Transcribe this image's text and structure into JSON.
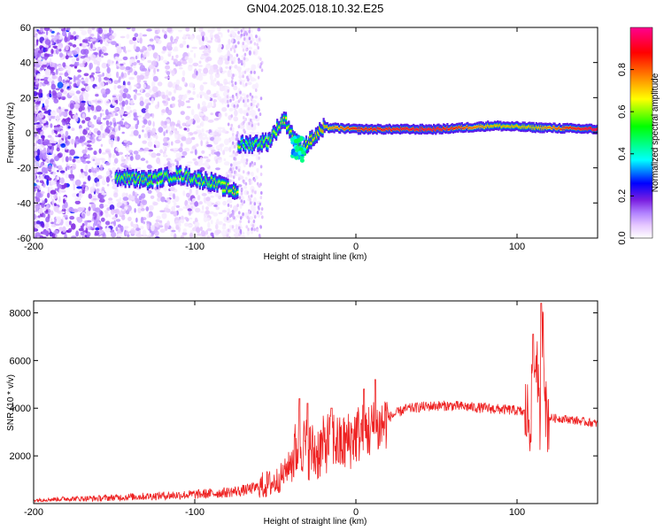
{
  "title": "GN04.2025.018.10.32.E25",
  "chart_data": [
    {
      "type": "heatmap",
      "xlabel": "Height of straight line (km)",
      "ylabel": "Frequency (Hz)",
      "xlim": [
        -200,
        150
      ],
      "ylim": [
        -60,
        60
      ],
      "xticks": [
        -200,
        -100,
        0,
        100
      ],
      "yticks": [
        -60,
        -40,
        -20,
        0,
        20,
        40,
        60
      ],
      "colorbar": {
        "label": "Normalized spectral amplitude",
        "range": [
          0,
          1
        ],
        "ticks": [
          "0.0",
          "0.2",
          "0.4",
          "0.6",
          "0.8"
        ],
        "colors": [
          "#ffffff",
          "#e6c8ff",
          "#b080ff",
          "#7a1fe0",
          "#0000ff",
          "#00ffff",
          "#00ff00",
          "#ffff00",
          "#ff8000",
          "#ff0000",
          "#ff0090"
        ]
      },
      "ridge": [
        {
          "x": -150,
          "freq": -25,
          "amp": 0.45
        },
        {
          "x": -130,
          "freq": -27,
          "amp": 0.45
        },
        {
          "x": -110,
          "freq": -24,
          "amp": 0.45
        },
        {
          "x": -90,
          "freq": -28,
          "amp": 0.45
        },
        {
          "x": -77,
          "freq": -33,
          "amp": 0.5
        },
        {
          "x": -72,
          "freq": -7,
          "amp": 0.4
        },
        {
          "x": -55,
          "freq": -5,
          "amp": 0.45
        },
        {
          "x": -45,
          "freq": 8,
          "amp": 0.5
        },
        {
          "x": -35,
          "freq": -10,
          "amp": 0.5
        },
        {
          "x": -20,
          "freq": 3,
          "amp": 0.6
        },
        {
          "x": 0,
          "freq": 2,
          "amp": 0.75
        },
        {
          "x": 50,
          "freq": 2,
          "amp": 0.8
        },
        {
          "x": 85,
          "freq": 4,
          "amp": 0.6
        },
        {
          "x": 110,
          "freq": 3,
          "amp": 0.6
        },
        {
          "x": 150,
          "freq": 2,
          "amp": 0.85
        }
      ]
    },
    {
      "type": "line",
      "xlabel": "Height of straight line (km)",
      "ylabel": "SNR (10 * v/v)",
      "xlim": [
        -200,
        150
      ],
      "ylim": [
        0,
        8500
      ],
      "xticks": [
        -200,
        -100,
        0,
        100
      ],
      "yticks": [
        2000,
        4000,
        6000,
        8000
      ],
      "color": "#ee2222",
      "series": [
        {
          "x": [
            -200,
            -180,
            -160,
            -140,
            -120,
            -100,
            -90,
            -80,
            -70,
            -60,
            -50,
            -45,
            -40,
            -35,
            -30,
            -25,
            -20,
            -15,
            -10,
            -5,
            0,
            5,
            10,
            15,
            20,
            30,
            40,
            50,
            60,
            70,
            80,
            90,
            100,
            105,
            108,
            110,
            112,
            114,
            116,
            118,
            120,
            130,
            140,
            150
          ],
          "y": [
            150,
            200,
            220,
            280,
            330,
            380,
            420,
            470,
            550,
            700,
            900,
            1200,
            1800,
            2600,
            2300,
            2100,
            2400,
            2800,
            2400,
            2600,
            2900,
            3000,
            3100,
            3200,
            3600,
            3950,
            4050,
            4100,
            4100,
            4050,
            4000,
            3950,
            3900,
            3800,
            3500,
            5000,
            6500,
            3000,
            8400,
            3700,
            3600,
            3550,
            3450,
            3350
          ]
        }
      ],
      "peaks": [
        {
          "x": -35,
          "y": 4400
        },
        {
          "x": -30,
          "y": 4200
        },
        {
          "x": -15,
          "y": 4000
        },
        {
          "x": 5,
          "y": 4800
        },
        {
          "x": 12,
          "y": 5200
        },
        {
          "x": 110,
          "y": 7100
        },
        {
          "x": 115,
          "y": 8400
        }
      ]
    }
  ]
}
